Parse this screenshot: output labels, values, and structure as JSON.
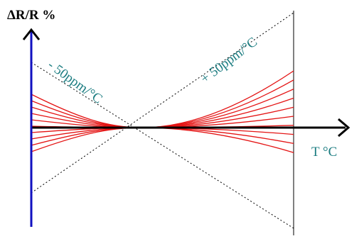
{
  "axes": {
    "y_label": "ΔR/R %",
    "x_label": "T °C"
  },
  "lines": [
    {
      "label": "- 50ppm/°C"
    },
    {
      "label": "+ 50ppm/°C"
    }
  ]
}
